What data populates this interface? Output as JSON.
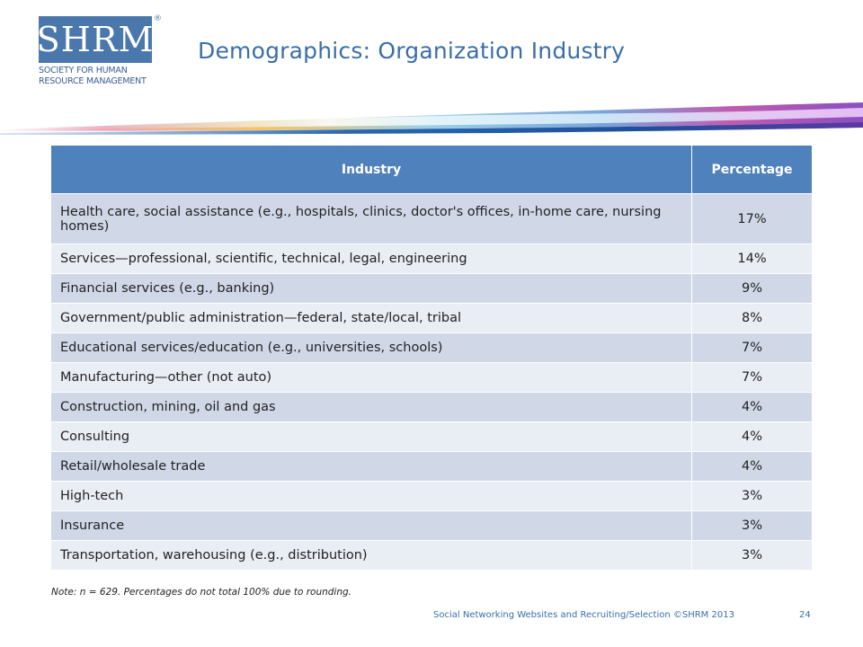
{
  "logo": {
    "word": "SHRM",
    "registered": "®",
    "subtitle_line1": "SOCIETY FOR HUMAN",
    "subtitle_line2": "RESOURCE MANAGEMENT"
  },
  "slide": {
    "title": "Demographics: Organization Industry"
  },
  "table": {
    "headers": {
      "industry": "Industry",
      "percentage": "Percentage"
    },
    "rows": [
      {
        "industry": "Health care, social assistance (e.g., hospitals, clinics, doctor's offices, in-home care, nursing homes)",
        "percentage": "17%"
      },
      {
        "industry": "Services—professional, scientific, technical, legal, engineering",
        "percentage": "14%"
      },
      {
        "industry": "Financial services (e.g., banking)",
        "percentage": "9%"
      },
      {
        "industry": "Government/public administration—federal, state/local, tribal",
        "percentage": "8%"
      },
      {
        "industry": "Educational services/education (e.g., universities, schools)",
        "percentage": "7%"
      },
      {
        "industry": "Manufacturing—other (not auto)",
        "percentage": "7%"
      },
      {
        "industry": "Construction, mining, oil and gas",
        "percentage": "4%"
      },
      {
        "industry": "Consulting",
        "percentage": "4%"
      },
      {
        "industry": "Retail/wholesale trade",
        "percentage": "4%"
      },
      {
        "industry": "High-tech",
        "percentage": "3%"
      },
      {
        "industry": "Insurance",
        "percentage": "3%"
      },
      {
        "industry": "Transportation, warehousing (e.g., distribution)",
        "percentage": "3%"
      }
    ]
  },
  "note": "Note: n = 629. Percentages do not total 100% due to rounding.",
  "footer": {
    "text": "Social Networking Websites and Recruiting/Selection ©SHRM 2013",
    "page_number": "24"
  },
  "colors": {
    "header_blue": "#4f81bd",
    "row_dark": "#d0d8e8",
    "row_light": "#e9edf4",
    "title_blue": "#3b6ea8",
    "logo_blue": "#4a78ad"
  }
}
